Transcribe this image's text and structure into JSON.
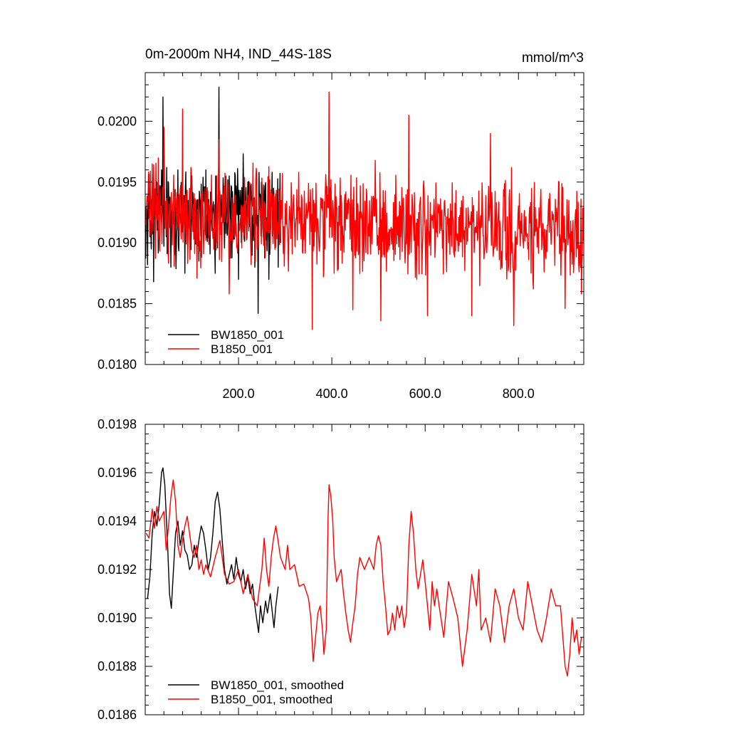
{
  "chart_data": [
    {
      "type": "line",
      "title": "0m-2000m NH4, IND_44S-18S",
      "units": "mmol/m^3",
      "xlabel": "",
      "ylabel": "",
      "xlim": [
        0,
        940
      ],
      "ylim": [
        0.018,
        0.0204
      ],
      "x_tick_labels": [
        "200.0",
        "400.0",
        "600.0",
        "800.0"
      ],
      "x_ticks": [
        200,
        400,
        600,
        800
      ],
      "y_tick_labels": [
        "0.0180",
        "0.0185",
        "0.0190",
        "0.0195",
        "0.0200"
      ],
      "y_ticks": [
        0.018,
        0.0185,
        0.019,
        0.0195,
        0.02
      ],
      "legend_position": "bottom-left",
      "series": [
        {
          "name": "BW1850_001",
          "color": "#000000",
          "x_start": 1,
          "x_end": 290,
          "mean": 0.01923,
          "amplitude": 0.0003,
          "points": [
            [
              5,
              0.01882
            ],
            [
              10,
              0.01905
            ],
            [
              18,
              0.01868
            ],
            [
              25,
              0.0195
            ],
            [
              35,
              0.0196
            ],
            [
              38,
              0.0202
            ],
            [
              45,
              0.01905
            ],
            [
              55,
              0.0188
            ],
            [
              70,
              0.0196
            ],
            [
              85,
              0.01875
            ],
            [
              100,
              0.01955
            ],
            [
              115,
              0.01885
            ],
            [
              130,
              0.0196
            ],
            [
              150,
              0.01875
            ],
            [
              158,
              0.02028
            ],
            [
              165,
              0.0192
            ],
            [
              180,
              0.01955
            ],
            [
              200,
              0.0187
            ],
            [
              220,
              0.0195
            ],
            [
              235,
              0.0188
            ],
            [
              242,
              0.01842
            ],
            [
              250,
              0.0195
            ],
            [
              265,
              0.0187
            ],
            [
              275,
              0.01945
            ],
            [
              285,
              0.0188
            ],
            [
              290,
              0.019
            ]
          ]
        },
        {
          "name": "B1850_001",
          "color": "#ff0000",
          "x_start": 1,
          "x_end": 940,
          "mean": 0.01915,
          "amplitude": 0.0003,
          "points": [
            [
              15,
              0.01965
            ],
            [
              40,
              0.01995
            ],
            [
              80,
              0.0201
            ],
            [
              158,
              0.01985
            ],
            [
              180,
              0.01858
            ],
            [
              358,
              0.01829
            ],
            [
              394,
              0.02024
            ],
            [
              405,
              0.01875
            ],
            [
              445,
              0.01845
            ],
            [
              505,
              0.01836
            ],
            [
              565,
              0.02005
            ],
            [
              605,
              0.0184
            ],
            [
              650,
              0.019
            ],
            [
              700,
              0.0184
            ],
            [
              740,
              0.0199
            ],
            [
              790,
              0.01832
            ],
            [
              820,
              0.01895
            ],
            [
              900,
              0.01846
            ],
            [
              935,
              0.01858
            ]
          ]
        }
      ]
    },
    {
      "type": "line",
      "title": "",
      "xlabel": "",
      "ylabel": "",
      "xlim": [
        0,
        940
      ],
      "ylim": [
        0.0186,
        0.0198
      ],
      "x_ticks": [
        200,
        400,
        600,
        800
      ],
      "x_tick_labels": [],
      "y_tick_labels": [
        "0.0186",
        "0.0188",
        "0.0190",
        "0.0192",
        "0.0194",
        "0.0196",
        "0.0198"
      ],
      "y_ticks": [
        0.0186,
        0.0188,
        0.019,
        0.0192,
        0.0194,
        0.0196,
        0.0198
      ],
      "legend_position": "bottom-left",
      "series": [
        {
          "name": "BW1850_001, smoothed",
          "color": "#000000",
          "points": [
            [
              5,
              0.01908
            ],
            [
              10,
              0.01917
            ],
            [
              15,
              0.01935
            ],
            [
              20,
              0.01944
            ],
            [
              25,
              0.01938
            ],
            [
              30,
              0.01947
            ],
            [
              35,
              0.0196
            ],
            [
              38,
              0.01962
            ],
            [
              42,
              0.01955
            ],
            [
              48,
              0.0193
            ],
            [
              52,
              0.0191
            ],
            [
              56,
              0.01904
            ],
            [
              60,
              0.01918
            ],
            [
              65,
              0.01935
            ],
            [
              70,
              0.0194
            ],
            [
              75,
              0.0193
            ],
            [
              80,
              0.01936
            ],
            [
              85,
              0.01928
            ],
            [
              90,
              0.01926
            ],
            [
              95,
              0.0192
            ],
            [
              100,
              0.01922
            ],
            [
              105,
              0.0193
            ],
            [
              110,
              0.01925
            ],
            [
              115,
              0.01932
            ],
            [
              120,
              0.01938
            ],
            [
              125,
              0.01935
            ],
            [
              130,
              0.01928
            ],
            [
              135,
              0.0192
            ],
            [
              140,
              0.01925
            ],
            [
              145,
              0.01935
            ],
            [
              150,
              0.01948
            ],
            [
              155,
              0.01952
            ],
            [
              160,
              0.01945
            ],
            [
              165,
              0.01932
            ],
            [
              170,
              0.0192
            ],
            [
              175,
              0.01914
            ],
            [
              180,
              0.01918
            ],
            [
              185,
              0.01922
            ],
            [
              190,
              0.01916
            ],
            [
              195,
              0.01925
            ],
            [
              200,
              0.01918
            ],
            [
              205,
              0.01915
            ],
            [
              210,
              0.0192
            ],
            [
              215,
              0.01912
            ],
            [
              220,
              0.01917
            ],
            [
              225,
              0.0191
            ],
            [
              230,
              0.01914
            ],
            [
              235,
              0.01905
            ],
            [
              240,
              0.01898
            ],
            [
              243,
              0.01894
            ],
            [
              247,
              0.01905
            ],
            [
              252,
              0.01898
            ],
            [
              258,
              0.01907
            ],
            [
              262,
              0.01902
            ],
            [
              268,
              0.0191
            ],
            [
              272,
              0.01903
            ],
            [
              276,
              0.01896
            ],
            [
              280,
              0.01905
            ],
            [
              285,
              0.01913
            ]
          ]
        },
        {
          "name": "B1850_001, smoothed",
          "color": "#ff0000",
          "points": [
            [
              2,
              0.01935
            ],
            [
              8,
              0.01933
            ],
            [
              15,
              0.01945
            ],
            [
              20,
              0.01937
            ],
            [
              25,
              0.01946
            ],
            [
              30,
              0.0194
            ],
            [
              40,
              0.01944
            ],
            [
              45,
              0.01928
            ],
            [
              50,
              0.01938
            ],
            [
              55,
              0.0195
            ],
            [
              60,
              0.01957
            ],
            [
              65,
              0.01948
            ],
            [
              70,
              0.0193
            ],
            [
              75,
              0.01925
            ],
            [
              80,
              0.01932
            ],
            [
              85,
              0.01938
            ],
            [
              90,
              0.01942
            ],
            [
              95,
              0.01935
            ],
            [
              100,
              0.01928
            ],
            [
              105,
              0.01925
            ],
            [
              110,
              0.0193
            ],
            [
              115,
              0.0192
            ],
            [
              120,
              0.01924
            ],
            [
              125,
              0.01918
            ],
            [
              130,
              0.01922
            ],
            [
              140,
              0.01917
            ],
            [
              150,
              0.01925
            ],
            [
              160,
              0.01932
            ],
            [
              165,
              0.01925
            ],
            [
              170,
              0.01918
            ],
            [
              180,
              0.01914
            ],
            [
              190,
              0.01915
            ],
            [
              200,
              0.0192
            ],
            [
              210,
              0.0191
            ],
            [
              220,
              0.01918
            ],
            [
              230,
              0.01908
            ],
            [
              240,
              0.01905
            ],
            [
              250,
              0.0192
            ],
            [
              255,
              0.01933
            ],
            [
              260,
              0.0192
            ],
            [
              265,
              0.01913
            ],
            [
              270,
              0.01925
            ],
            [
              275,
              0.01933
            ],
            [
              280,
              0.01938
            ],
            [
              290,
              0.01925
            ],
            [
              300,
              0.0192
            ],
            [
              305,
              0.0193
            ],
            [
              310,
              0.0192
            ],
            [
              320,
              0.01922
            ],
            [
              330,
              0.01913
            ],
            [
              340,
              0.01914
            ],
            [
              350,
              0.01908
            ],
            [
              355,
              0.019
            ],
            [
              360,
              0.01882
            ],
            [
              365,
              0.01892
            ],
            [
              370,
              0.01902
            ],
            [
              375,
              0.01905
            ],
            [
              380,
              0.01895
            ],
            [
              383,
              0.01885
            ],
            [
              388,
              0.01895
            ],
            [
              392,
              0.01942
            ],
            [
              394,
              0.01955
            ],
            [
              398,
              0.0195
            ],
            [
              402,
              0.0194
            ],
            [
              405,
              0.01925
            ],
            [
              410,
              0.01915
            ],
            [
              420,
              0.0192
            ],
            [
              425,
              0.0191
            ],
            [
              430,
              0.01902
            ],
            [
              435,
              0.01895
            ],
            [
              440,
              0.0189
            ],
            [
              445,
              0.01898
            ],
            [
              450,
              0.01905
            ],
            [
              455,
              0.01918
            ],
            [
              460,
              0.01925
            ],
            [
              470,
              0.0192
            ],
            [
              480,
              0.01925
            ],
            [
              490,
              0.0192
            ],
            [
              495,
              0.0193
            ],
            [
              500,
              0.01934
            ],
            [
              505,
              0.0193
            ],
            [
              510,
              0.01915
            ],
            [
              515,
              0.01905
            ],
            [
              520,
              0.01893
            ],
            [
              525,
              0.01895
            ],
            [
              530,
              0.01902
            ],
            [
              535,
              0.01895
            ],
            [
              540,
              0.01905
            ],
            [
              545,
              0.019
            ],
            [
              550,
              0.01905
            ],
            [
              555,
              0.01896
            ],
            [
              560,
              0.01902
            ],
            [
              565,
              0.0193
            ],
            [
              570,
              0.01944
            ],
            [
              575,
              0.01935
            ],
            [
              580,
              0.0192
            ],
            [
              585,
              0.01912
            ],
            [
              590,
              0.01918
            ],
            [
              595,
              0.01924
            ],
            [
              600,
              0.01915
            ],
            [
              605,
              0.01905
            ],
            [
              610,
              0.01895
            ],
            [
              615,
              0.01915
            ],
            [
              620,
              0.01905
            ],
            [
              625,
              0.01912
            ],
            [
              630,
              0.01905
            ],
            [
              640,
              0.01892
            ],
            [
              650,
              0.01915
            ],
            [
              660,
              0.01908
            ],
            [
              670,
              0.019
            ],
            [
              675,
              0.0189
            ],
            [
              680,
              0.0188
            ],
            [
              690,
              0.01895
            ],
            [
              700,
              0.01918
            ],
            [
              710,
              0.01905
            ],
            [
              715,
              0.0192
            ],
            [
              720,
              0.01895
            ],
            [
              730,
              0.019
            ],
            [
              740,
              0.0189
            ],
            [
              750,
              0.01912
            ],
            [
              760,
              0.01905
            ],
            [
              770,
              0.0189
            ],
            [
              780,
              0.01905
            ],
            [
              790,
              0.01912
            ],
            [
              800,
              0.019
            ],
            [
              810,
              0.01895
            ],
            [
              820,
              0.01915
            ],
            [
              830,
              0.01905
            ],
            [
              840,
              0.01895
            ],
            [
              850,
              0.0189
            ],
            [
              860,
              0.019
            ],
            [
              870,
              0.01912
            ],
            [
              880,
              0.01905
            ],
            [
              890,
              0.01905
            ],
            [
              900,
              0.0188
            ],
            [
              905,
              0.01876
            ],
            [
              910,
              0.01885
            ],
            [
              915,
              0.019
            ],
            [
              920,
              0.0189
            ],
            [
              925,
              0.01895
            ],
            [
              930,
              0.01885
            ],
            [
              935,
              0.01892
            ]
          ]
        }
      ]
    }
  ]
}
